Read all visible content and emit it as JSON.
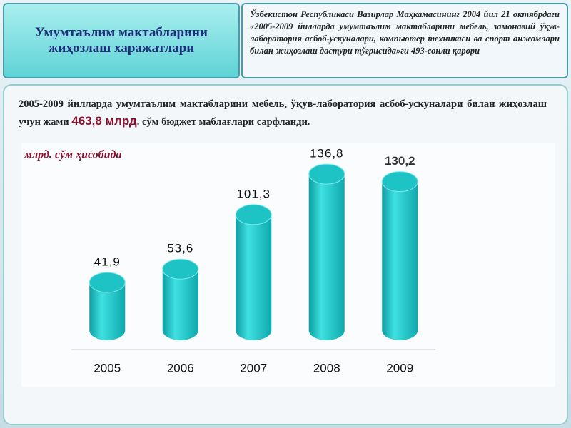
{
  "header": {
    "title": "Умумтаълим мактабларини жиҳозлаш харажатлари",
    "decree": "Ўзбекистон Республикаси Вазирлар Маҳкамасининг 2004 йил 21 октябрдаги «2005-2009 йилларда умумтаълим мактабларини мебель, замонавий ўқув-лаборатория асбоб-ускуналари, компьютер техникаси ва спорт анжомлари билан жиҳозлаш дастури тўғрисида»ги 493-сонли қарори"
  },
  "summary": {
    "before": "2005-2009 йилларда умумтаълим мактабларини мебель, ўқув-лаборатория асбоб-ускуналари билан жиҳозлаш учун жами",
    "highlight": "463,8 млрд",
    "after": ". сўм бюджет маблағлари сарфланди."
  },
  "chart_data": {
    "type": "bar",
    "unit_label": "млрд. сўм ҳисобида",
    "categories": [
      "2005",
      "2006",
      "2007",
      "2008",
      "2009"
    ],
    "values": [
      41.9,
      53.6,
      101.3,
      136.8,
      130.2
    ],
    "value_labels": [
      "41,9",
      "53,6",
      "101,3",
      "136,8",
      "130,2"
    ],
    "color": "#1ec3c6",
    "ylim": [
      0,
      150
    ]
  }
}
